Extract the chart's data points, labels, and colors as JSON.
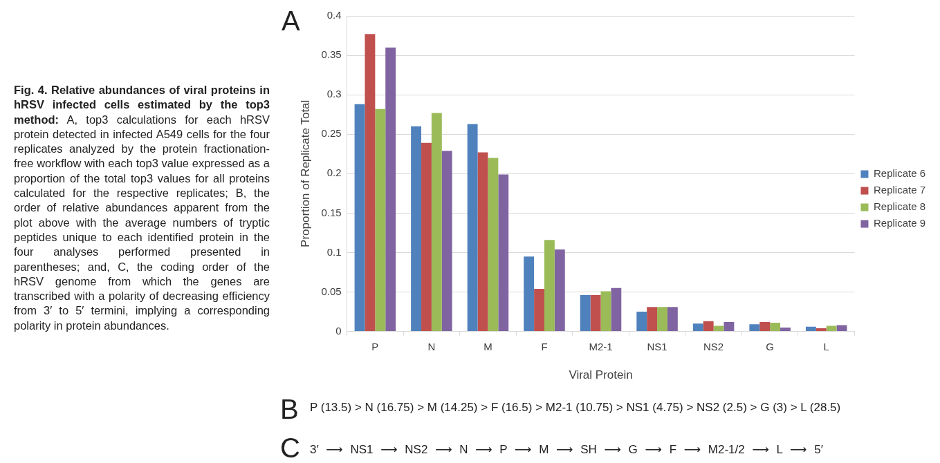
{
  "chart_data": {
    "type": "bar",
    "xlabel": "Viral Protein",
    "ylabel": "Proportion of Replicate Total",
    "categories": [
      "P",
      "N",
      "M",
      "F",
      "M2-1",
      "NS1",
      "NS2",
      "G",
      "L"
    ],
    "series": [
      {
        "name": "Replicate 6",
        "color": "#4f81bd",
        "values": [
          0.288,
          0.26,
          0.263,
          0.095,
          0.046,
          0.025,
          0.01,
          0.009,
          0.006
        ]
      },
      {
        "name": "Replicate 7",
        "color": "#c0504d",
        "values": [
          0.377,
          0.239,
          0.227,
          0.054,
          0.046,
          0.031,
          0.013,
          0.012,
          0.004
        ]
      },
      {
        "name": "Replicate 8",
        "color": "#9bbb59",
        "values": [
          0.282,
          0.277,
          0.22,
          0.116,
          0.051,
          0.031,
          0.007,
          0.011,
          0.007
        ]
      },
      {
        "name": "Replicate 9",
        "color": "#8064a2",
        "values": [
          0.36,
          0.229,
          0.199,
          0.104,
          0.055,
          0.031,
          0.012,
          0.005,
          0.008
        ]
      }
    ],
    "ylim": [
      0,
      0.4
    ],
    "yticks": [
      0,
      0.05,
      0.1,
      0.15,
      0.2,
      0.25,
      0.3,
      0.35,
      0.4
    ],
    "grid": "y",
    "legend": "right",
    "annotations": [
      "Fig. 4. Relative abundances of viral proteins in hRSV infected cells estimated by the top3 method:",
      "A, top3 calculations for each hRSV protein detected in infected A549 cells for the four replicates analyzed by the protein fractionation-free workflow with each top3 value expressed as a proportion of the total top3 values for all proteins calculated for the respective replicates; B, the order of relative abundances apparent from the plot above with the average numbers of tryptic peptides unique to each identified protein in the four analyses performed presented in parentheses; and, C, the coding order of the hRSV genome from which the genes are transcribed with a polarity of decreasing efficiency from 3′ to 5′ termini, implying a corresponding polarity in protein abundances.",
      "A",
      "B",
      "P (13.5) > N (16.75) > M (14.25) > F (16.5) > M2-1 (10.75) > NS1 (4.75) > NS2 (2.5) > G (3) > L (28.5)",
      "C",
      "3′ ⟶ NS1 ⟶ NS2 ⟶ N ⟶ P ⟶ M ⟶ SH ⟶ G ⟶ F ⟶ M2-1/2 ⟶ L ⟶ 5′"
    ]
  }
}
